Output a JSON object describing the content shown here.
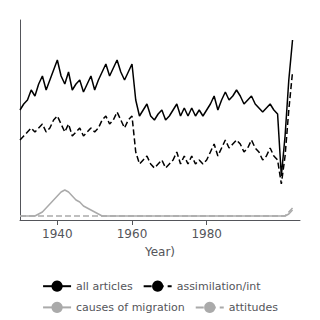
{
  "chart_data": {
    "type": "line",
    "xlabel": "Year)",
    "x": [
      1930,
      1931,
      1932,
      1933,
      1934,
      1935,
      1936,
      1937,
      1938,
      1939,
      1940,
      1941,
      1942,
      1943,
      1944,
      1945,
      1946,
      1947,
      1948,
      1949,
      1950,
      1951,
      1952,
      1953,
      1954,
      1955,
      1956,
      1957,
      1958,
      1959,
      1960,
      1961,
      1962,
      1963,
      1964,
      1965,
      1966,
      1967,
      1968,
      1969,
      1970,
      1971,
      1972,
      1973,
      1974,
      1975,
      1976,
      1977,
      1978,
      1979,
      1980,
      1981,
      1982,
      1983,
      1984,
      1985,
      1986,
      1987,
      1988,
      1989,
      1990,
      1991,
      1992,
      1993,
      1994,
      1995,
      1996,
      1997,
      1998,
      1999,
      2000,
      2001,
      2002,
      2003
    ],
    "xlim": [
      1930,
      2005
    ],
    "xticks": [
      1940,
      1960,
      1980
    ],
    "ylim": [
      0.0,
      1.0
    ],
    "tick_labels": "x",
    "grid": false,
    "legend": "bottom",
    "series": [
      {
        "name": "all articles",
        "color": "#000000",
        "line_style": "solid",
        "values": [
          0.55,
          0.58,
          0.6,
          0.65,
          0.62,
          0.68,
          0.72,
          0.65,
          0.7,
          0.75,
          0.8,
          0.72,
          0.68,
          0.74,
          0.65,
          0.68,
          0.7,
          0.64,
          0.68,
          0.72,
          0.65,
          0.7,
          0.74,
          0.78,
          0.72,
          0.76,
          0.8,
          0.74,
          0.7,
          0.74,
          0.78,
          0.6,
          0.52,
          0.55,
          0.58,
          0.52,
          0.5,
          0.53,
          0.55,
          0.5,
          0.52,
          0.55,
          0.58,
          0.52,
          0.56,
          0.52,
          0.56,
          0.52,
          0.55,
          0.52,
          0.55,
          0.58,
          0.62,
          0.55,
          0.6,
          0.64,
          0.6,
          0.62,
          0.65,
          0.62,
          0.58,
          0.6,
          0.62,
          0.58,
          0.56,
          0.54,
          0.56,
          0.58,
          0.55,
          0.53,
          0.22,
          0.42,
          0.7,
          0.9
        ]
      },
      {
        "name": "assimilation/int",
        "color": "#000000",
        "line_style": "dashed",
        "values": [
          0.4,
          0.42,
          0.44,
          0.46,
          0.44,
          0.46,
          0.48,
          0.44,
          0.46,
          0.5,
          0.52,
          0.48,
          0.44,
          0.48,
          0.42,
          0.44,
          0.46,
          0.42,
          0.44,
          0.46,
          0.44,
          0.46,
          0.5,
          0.52,
          0.48,
          0.5,
          0.54,
          0.5,
          0.46,
          0.5,
          0.52,
          0.34,
          0.28,
          0.3,
          0.32,
          0.28,
          0.26,
          0.28,
          0.3,
          0.26,
          0.28,
          0.3,
          0.34,
          0.28,
          0.32,
          0.28,
          0.32,
          0.28,
          0.3,
          0.28,
          0.3,
          0.34,
          0.38,
          0.32,
          0.36,
          0.4,
          0.36,
          0.38,
          0.4,
          0.38,
          0.34,
          0.36,
          0.4,
          0.36,
          0.34,
          0.3,
          0.32,
          0.36,
          0.32,
          0.3,
          0.18,
          0.32,
          0.55,
          0.74
        ]
      },
      {
        "name": "causes of migration",
        "color": "#aaaaaa",
        "line_style": "solid",
        "values": [
          0.02,
          0.02,
          0.02,
          0.02,
          0.02,
          0.03,
          0.04,
          0.06,
          0.08,
          0.1,
          0.12,
          0.14,
          0.15,
          0.14,
          0.12,
          0.1,
          0.09,
          0.07,
          0.06,
          0.05,
          0.04,
          0.03,
          0.02,
          0.02,
          0.02,
          0.02,
          0.02,
          0.02,
          0.02,
          0.02,
          0.02,
          0.02,
          0.02,
          0.02,
          0.02,
          0.02,
          0.02,
          0.02,
          0.02,
          0.02,
          0.02,
          0.02,
          0.02,
          0.02,
          0.02,
          0.02,
          0.02,
          0.02,
          0.02,
          0.02,
          0.02,
          0.02,
          0.02,
          0.02,
          0.02,
          0.02,
          0.02,
          0.02,
          0.02,
          0.02,
          0.02,
          0.02,
          0.02,
          0.02,
          0.02,
          0.02,
          0.02,
          0.02,
          0.02,
          0.02,
          0.02,
          0.02,
          0.03,
          0.05
        ]
      },
      {
        "name": "attitudes",
        "color": "#aaaaaa",
        "line_style": "dashed",
        "values": [
          0.02,
          0.02,
          0.02,
          0.02,
          0.02,
          0.02,
          0.02,
          0.02,
          0.02,
          0.02,
          0.02,
          0.02,
          0.02,
          0.02,
          0.02,
          0.02,
          0.02,
          0.02,
          0.02,
          0.02,
          0.02,
          0.02,
          0.02,
          0.02,
          0.02,
          0.02,
          0.02,
          0.02,
          0.02,
          0.02,
          0.02,
          0.02,
          0.02,
          0.02,
          0.02,
          0.02,
          0.02,
          0.02,
          0.02,
          0.02,
          0.02,
          0.02,
          0.02,
          0.02,
          0.02,
          0.02,
          0.02,
          0.02,
          0.02,
          0.02,
          0.02,
          0.02,
          0.02,
          0.02,
          0.02,
          0.02,
          0.02,
          0.02,
          0.02,
          0.02,
          0.02,
          0.02,
          0.02,
          0.02,
          0.02,
          0.02,
          0.02,
          0.02,
          0.02,
          0.02,
          0.02,
          0.02,
          0.04,
          0.06
        ]
      }
    ]
  }
}
